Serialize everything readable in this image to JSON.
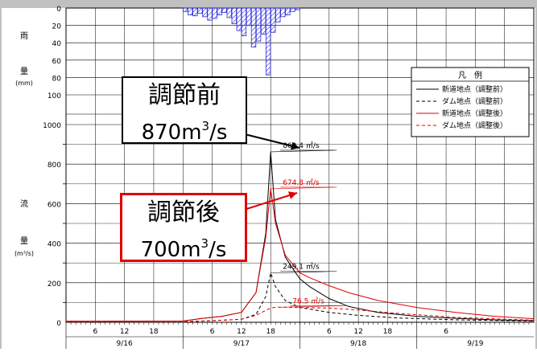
{
  "chart_data": {
    "type": "hyetograph-hydrograph",
    "left_axis_labels": {
      "rain": "雨",
      "rain_amount": "量",
      "rain_unit": "(mm)",
      "flow": "流",
      "flow_amount": "量",
      "flow_unit": "(m³/s)"
    },
    "rain_axis": {
      "ticks": [
        0,
        20,
        40,
        60,
        80,
        100
      ],
      "ylim": [
        0,
        100
      ],
      "inverted": true
    },
    "flow_axis": {
      "ticks": [
        0,
        200,
        400,
        600,
        800,
        1000
      ],
      "ylim": [
        0,
        1000
      ]
    },
    "x_hours": {
      "range": [
        0,
        96
      ],
      "ticks": [
        "6",
        "12",
        "18",
        "6",
        "12",
        "18",
        "6",
        "12",
        "18",
        "6"
      ],
      "tick_hours": [
        6,
        12,
        18,
        30,
        36,
        42,
        54,
        60,
        66,
        78
      ]
    },
    "dates": [
      {
        "label": "9/16",
        "start": 0,
        "end": 24
      },
      {
        "label": "9/17",
        "start": 24,
        "end": 48
      },
      {
        "label": "9/18",
        "start": 48,
        "end": 72
      },
      {
        "label": "9/19",
        "start": 72,
        "end": 96
      }
    ],
    "rainfall": [
      {
        "hour": 25,
        "value": 4
      },
      {
        "hour": 26,
        "value": 8
      },
      {
        "hour": 27,
        "value": 9
      },
      {
        "hour": 28,
        "value": 6
      },
      {
        "hour": 29,
        "value": 10
      },
      {
        "hour": 30,
        "value": 14
      },
      {
        "hour": 31,
        "value": 12
      },
      {
        "hour": 32,
        "value": 8
      },
      {
        "hour": 33,
        "value": 5
      },
      {
        "hour": 34,
        "value": 11
      },
      {
        "hour": 35,
        "value": 18
      },
      {
        "hour": 36,
        "value": 26
      },
      {
        "hour": 37,
        "value": 32
      },
      {
        "hour": 38,
        "value": 20
      },
      {
        "hour": 39,
        "value": 45
      },
      {
        "hour": 40,
        "value": 38
      },
      {
        "hour": 41,
        "value": 30
      },
      {
        "hour": 42,
        "value": 77
      },
      {
        "hour": 43,
        "value": 28
      },
      {
        "hour": 44,
        "value": 16
      },
      {
        "hour": 45,
        "value": 10
      },
      {
        "hour": 46,
        "value": 8
      },
      {
        "hour": 47,
        "value": 4
      },
      {
        "hour": 48,
        "value": 2
      }
    ],
    "series": [
      {
        "name": "新道地点（調整前）",
        "color": "#000000",
        "dash": false,
        "x": [
          0,
          24,
          28,
          32,
          36,
          39,
          41,
          42,
          43,
          45,
          47,
          48,
          50,
          54,
          58,
          64,
          72,
          80,
          88,
          96
        ],
        "y": [
          5,
          6,
          20,
          30,
          50,
          150,
          450,
          862,
          520,
          330,
          255,
          220,
          180,
          120,
          80,
          50,
          30,
          20,
          12,
          8
        ]
      },
      {
        "name": "ダム地点（調整前）",
        "color": "#000000",
        "dash": true,
        "x": [
          0,
          24,
          30,
          36,
          39,
          41,
          42,
          43,
          45,
          48,
          54,
          60,
          68,
          80,
          96
        ],
        "y": [
          2,
          3,
          8,
          15,
          40,
          130,
          249,
          180,
          110,
          75,
          50,
          35,
          22,
          12,
          6
        ]
      },
      {
        "name": "新道地点（調整後）",
        "color": "#e00000",
        "dash": false,
        "x": [
          0,
          24,
          28,
          32,
          36,
          39,
          41,
          42,
          43,
          45,
          47,
          48,
          50,
          54,
          58,
          64,
          72,
          80,
          88,
          96
        ],
        "y": [
          5,
          6,
          20,
          30,
          50,
          150,
          430,
          675,
          500,
          340,
          280,
          250,
          225,
          185,
          150,
          110,
          75,
          50,
          30,
          18
        ]
      },
      {
        "name": "ダム地点（調整後）",
        "color": "#e00000",
        "dash": true,
        "x": [
          0,
          24,
          30,
          36,
          39,
          41,
          42,
          43,
          45,
          48,
          54,
          60,
          68,
          80,
          96
        ],
        "y": [
          2,
          3,
          8,
          15,
          35,
          60,
          72,
          76,
          76,
          75,
          72,
          62,
          45,
          25,
          10
        ]
      }
    ],
    "peak_labels": [
      {
        "text": "862.4 ㎥/s",
        "color": "#000000",
        "hour": 42,
        "value": 862
      },
      {
        "text": "674.8 ㎥/s",
        "color": "#e00000",
        "hour": 42,
        "value": 675
      },
      {
        "text": "249.1 ㎥/s",
        "color": "#000000",
        "hour": 42,
        "value": 249
      },
      {
        "text": "76.5 ㎥/s",
        "color": "#e00000",
        "hour": 44,
        "value": 76
      }
    ],
    "legend": {
      "title": "凡　例",
      "entries": [
        "新道地点（調整前）",
        "ダム地点（調整前）",
        "新道地点（調整後）",
        "ダム地点（調整後）"
      ]
    }
  },
  "callouts": {
    "before": {
      "line1": "調節前",
      "value": "870m",
      "sup": "3",
      "unit": "/s"
    },
    "after": {
      "line1": "調節後",
      "value": "700m",
      "sup": "3",
      "unit": "/s"
    }
  },
  "colors": {
    "frame": "#c0c0c0",
    "grid": "#000000",
    "rain": "#2a2ad8",
    "red": "#e00000"
  }
}
